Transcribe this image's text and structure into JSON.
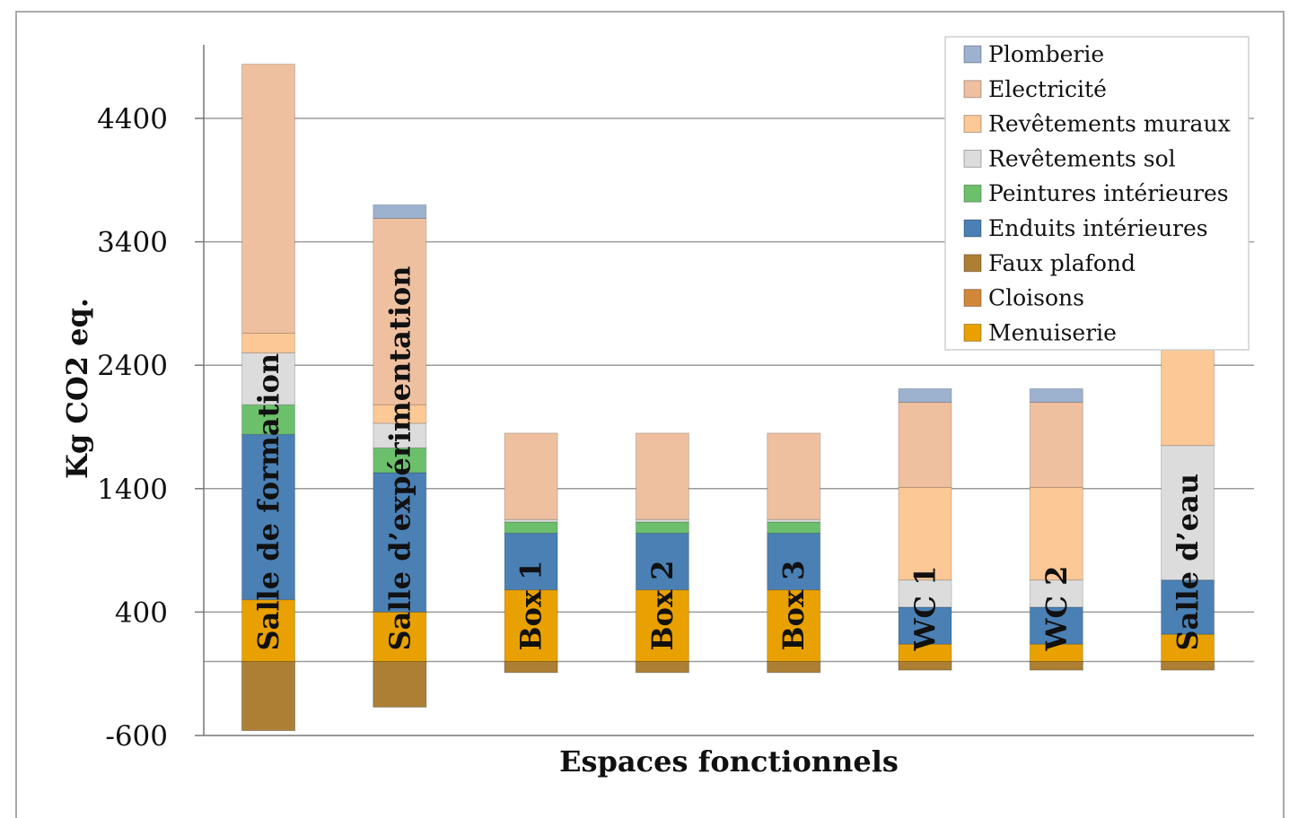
{
  "chart_data": {
    "type": "bar",
    "stacked": true,
    "xlabel": "Espaces fonctionnels",
    "ylabel": "Kg CO2 eq.",
    "ylim": [
      -600,
      5000
    ],
    "yticks": [
      -600,
      400,
      1400,
      2400,
      3400,
      4400
    ],
    "grid": true,
    "legend_position": "top-right",
    "categories": [
      "Salle de formation",
      "Salle d’expérimentation",
      "Box 1",
      "Box 2",
      "Box 3",
      "WC 1",
      "WC 2",
      "Salle d’eau"
    ],
    "series": [
      {
        "name": "Menuiserie",
        "color": "#e8a100",
        "values": [
          500,
          400,
          580,
          580,
          580,
          140,
          140,
          220
        ]
      },
      {
        "name": "Cloisons",
        "color": "#d1873a",
        "values": [
          0,
          0,
          0,
          0,
          0,
          0,
          0,
          0
        ]
      },
      {
        "name": "Faux plafond",
        "color": "#ad7f35",
        "values": [
          -560,
          -370,
          -90,
          -90,
          -90,
          -70,
          -70,
          -70
        ]
      },
      {
        "name": "Enduits intérieures",
        "color": "#4a80b4",
        "values": [
          1340,
          1130,
          460,
          460,
          460,
          300,
          300,
          440
        ]
      },
      {
        "name": "Peintures intérieures",
        "color": "#6cc06c",
        "values": [
          240,
          200,
          90,
          90,
          90,
          0,
          0,
          0
        ]
      },
      {
        "name": "Revêtements sol",
        "color": "#dcdcdc",
        "values": [
          420,
          200,
          20,
          20,
          20,
          220,
          220,
          1090
        ]
      },
      {
        "name": "Revêtements muraux",
        "color": "#fcc896",
        "values": [
          160,
          150,
          0,
          0,
          0,
          750,
          750,
          1170
        ]
      },
      {
        "name": "Electricité",
        "color": "#efc0a0",
        "values": [
          2180,
          1510,
          700,
          700,
          700,
          690,
          690,
          690
        ]
      },
      {
        "name": "Plomberie",
        "color": "#9cb2cf",
        "values": [
          0,
          110,
          0,
          0,
          0,
          110,
          110,
          110
        ]
      }
    ],
    "legend_order": [
      "Plomberie",
      "Electricité",
      "Revêtements muraux",
      "Revêtements sol",
      "Peintures intérieures",
      "Enduits intérieures",
      "Faux plafond",
      "Cloisons",
      "Menuiserie"
    ]
  }
}
